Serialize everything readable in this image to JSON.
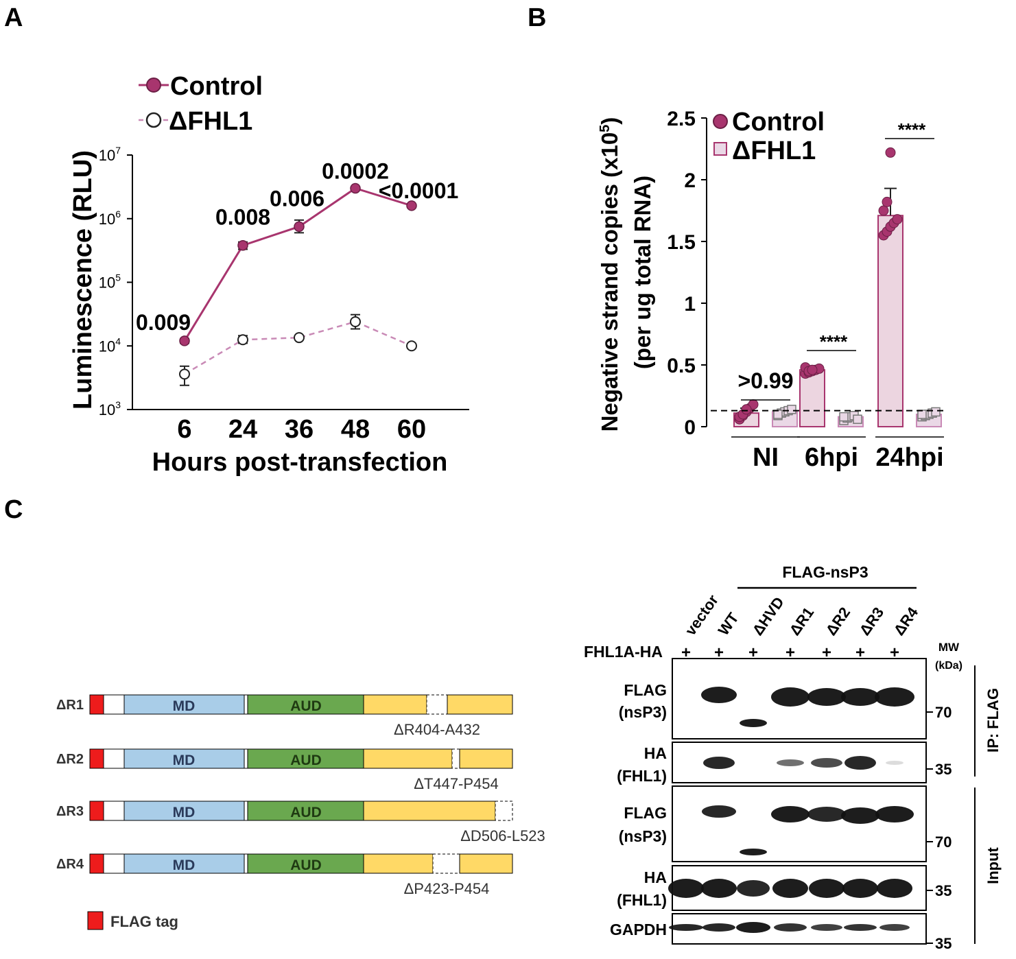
{
  "panels": {
    "A": {
      "letter": "A",
      "chart_data": {
        "type": "line",
        "ylabel": "Luminescence (RLU)",
        "xlabel": "Hours post-transfection",
        "yscale": "log",
        "ylim": [
          1000,
          10000000
        ],
        "y_tick_labels": [
          {
            "base": "10",
            "exp": "3",
            "v": 1000
          },
          {
            "base": "10",
            "exp": "4",
            "v": 10000
          },
          {
            "base": "10",
            "exp": "5",
            "v": 100000
          },
          {
            "base": "10",
            "exp": "6",
            "v": 1000000
          },
          {
            "base": "10",
            "exp": "7",
            "v": 10000000
          }
        ],
        "x": [
          6,
          24,
          36,
          48,
          60
        ],
        "x_tick_labels": [
          "6",
          "24",
          "36",
          "48",
          "60"
        ],
        "series": [
          {
            "name": "Control",
            "color": "#a8356e",
            "marker": "filled-circle",
            "line": "solid",
            "values": [
              12000,
              380000,
              750000,
              3000000,
              1600000
            ],
            "err_low": [
              11000,
              330000,
              600000,
              2900000,
              1550000
            ],
            "err_high": [
              13000,
              430000,
              950000,
              3100000,
              1650000
            ]
          },
          {
            "name": "ΔFHL1",
            "color": "#c98ab6",
            "marker": "open-circle",
            "line": "dashed",
            "values": [
              3600,
              12500,
              13500,
              24000,
              10000
            ],
            "err_low": [
              2400,
              11000,
              12500,
              18500,
              9500
            ],
            "err_high": [
              4800,
              14500,
              14500,
              31000,
              10500
            ]
          }
        ],
        "annotations": [
          "0.009",
          "0.008",
          "0.006",
          "0.0002",
          "<0.0001"
        ],
        "legend_position": "top-left",
        "grid": false
      }
    },
    "B": {
      "letter": "B",
      "chart_data": {
        "type": "bar",
        "ylabel_line1": "Negative strand copies (x10",
        "ylabel_sup": "5",
        "ylabel_close": ")",
        "ylabel_line2": "(per ug total RNA)",
        "ylim": [
          0,
          2.5
        ],
        "y_tick_labels": [
          "0",
          "0.5",
          "1",
          "1.5",
          "2",
          "2.5"
        ],
        "y_ticks": [
          0,
          0.5,
          1,
          1.5,
          2,
          2.5
        ],
        "categories": [
          "NI",
          "6hpi",
          "24hpi"
        ],
        "threshold": 0.13,
        "series": [
          {
            "name": "Control",
            "color": "#a8356e",
            "fill": "#ecd5e0",
            "values": [
              0.11,
              0.46,
              1.71
            ],
            "sd": [
              0.04,
              0.02,
              0.22
            ],
            "points": [
              [
                0.06,
                0.09,
                0.12,
                0.15,
                0.18,
                0.08,
                0.1,
                0.14
              ],
              [
                0.43,
                0.44,
                0.45,
                0.46,
                0.47,
                0.48,
                0.45,
                0.46
              ],
              [
                1.55,
                1.58,
                1.62,
                1.65,
                1.68,
                1.75,
                1.82,
                2.22
              ]
            ]
          },
          {
            "name": "ΔFHL1",
            "color": "#c98ab6",
            "fill": "#ead8e6",
            "values": [
              0.12,
              0.08,
              0.1
            ],
            "sd": [
              0.02,
              0.02,
              0.02
            ],
            "points": [
              [
                0.09,
                0.11,
                0.12,
                0.13,
                0.14,
                0.1
              ],
              [
                0.05,
                0.07,
                0.08,
                0.09,
                0.06,
                0.08
              ],
              [
                0.08,
                0.09,
                0.1,
                0.11,
                0.12,
                0.1
              ]
            ]
          }
        ],
        "significance": [
          ">0.99",
          "****",
          "****"
        ],
        "legend_position": "top-right",
        "grid": false
      }
    },
    "C": {
      "letter": "C",
      "constructs": [
        {
          "label": "ΔR1",
          "md": "MD",
          "aud": "AUD",
          "deletion": "ΔR404-A432"
        },
        {
          "label": "ΔR2",
          "md": "MD",
          "aud": "AUD",
          "deletion": "ΔT447-P454"
        },
        {
          "label": "ΔR3",
          "md": "MD",
          "aud": "AUD",
          "deletion": "ΔD506-L523"
        },
        {
          "label": "ΔR4",
          "md": "MD",
          "aud": "AUD",
          "deletion": "ΔP423-P454"
        }
      ],
      "legend_flag": "FLAG tag",
      "colors": {
        "flag": "#ee1c1c",
        "md": "#a9cde8",
        "aud": "#6aa84f",
        "hvd": "#ffd966"
      },
      "blot": {
        "header": "FLAG-nsP3",
        "lanes": [
          "vector",
          "WT",
          "ΔHVD",
          "ΔR1",
          "ΔR2",
          "ΔR3",
          "ΔR4"
        ],
        "row_label": "FHL1A-HA",
        "plus": [
          "+",
          "+",
          "+",
          "+",
          "+",
          "+",
          "+"
        ],
        "mw_title_1": "MW",
        "mw_title_2": "(kDa)",
        "panels": [
          {
            "l1": "FLAG",
            "l2": "(nsP3)",
            "mw": "70"
          },
          {
            "l1": "HA",
            "l2": "(FHL1)",
            "mw": "35"
          },
          {
            "l1": "FLAG",
            "l2": "(nsP3)",
            "mw": "70"
          },
          {
            "l1": "HA",
            "l2": "(FHL1)",
            "mw": "35"
          },
          {
            "l1": "GAPDH",
            "l2": "",
            "mw": "35"
          }
        ],
        "side_ip": "IP: FLAG",
        "side_input": "Input"
      }
    }
  }
}
